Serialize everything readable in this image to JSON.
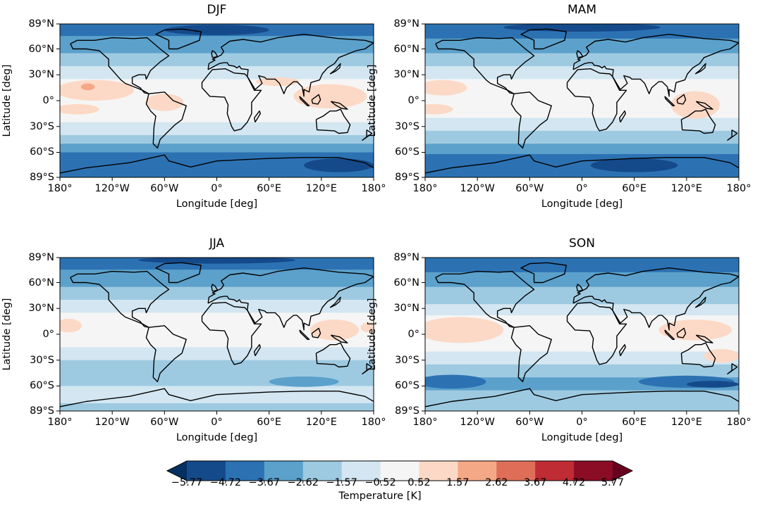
{
  "chart_data": {
    "type": "heatmap",
    "projection": "equirectangular",
    "panels": [
      {
        "title": "DJF",
        "bands": [
          [
            89,
            75,
            1
          ],
          [
            75,
            55,
            2
          ],
          [
            55,
            40,
            3
          ],
          [
            40,
            25,
            4
          ],
          [
            25,
            -25,
            5
          ],
          [
            -25,
            -40,
            4
          ],
          [
            -40,
            -50,
            3
          ],
          [
            -50,
            -60,
            2
          ],
          [
            -60,
            -89,
            1
          ]
        ],
        "blobs": [
          [
            -140,
            12,
            45,
            12,
            6
          ],
          [
            -148,
            16,
            8,
            4,
            7
          ],
          [
            130,
            5,
            42,
            14,
            6
          ],
          [
            -60,
            -2,
            22,
            10,
            6
          ],
          [
            70,
            22,
            25,
            5,
            6
          ],
          [
            -160,
            -10,
            25,
            6,
            6
          ],
          [
            0,
            82,
            60,
            6,
            0
          ],
          [
            140,
            -75,
            40,
            8,
            0
          ]
        ]
      },
      {
        "title": "MAM",
        "bands": [
          [
            89,
            72,
            1
          ],
          [
            72,
            55,
            2
          ],
          [
            55,
            40,
            3
          ],
          [
            40,
            25,
            4
          ],
          [
            25,
            -20,
            5
          ],
          [
            -20,
            -35,
            4
          ],
          [
            -35,
            -50,
            3
          ],
          [
            -50,
            -62,
            2
          ],
          [
            -62,
            -89,
            1
          ]
        ],
        "blobs": [
          [
            -160,
            15,
            28,
            9,
            6
          ],
          [
            -170,
            -10,
            22,
            6,
            6
          ],
          [
            130,
            -5,
            28,
            16,
            6
          ],
          [
            0,
            85,
            90,
            5,
            0
          ],
          [
            60,
            -75,
            50,
            8,
            0
          ]
        ]
      },
      {
        "title": "JJA",
        "bands": [
          [
            89,
            75,
            1
          ],
          [
            75,
            55,
            2
          ],
          [
            55,
            40,
            3
          ],
          [
            40,
            25,
            4
          ],
          [
            25,
            -15,
            5
          ],
          [
            -15,
            -30,
            4
          ],
          [
            -30,
            -60,
            3
          ],
          [
            -60,
            -80,
            4
          ],
          [
            -80,
            -89,
            3
          ]
        ],
        "blobs": [
          [
            -170,
            10,
            15,
            8,
            6
          ],
          [
            135,
            5,
            28,
            12,
            6
          ],
          [
            175,
            8,
            10,
            6,
            6
          ],
          [
            100,
            -55,
            40,
            6,
            2
          ],
          [
            0,
            86,
            90,
            4,
            0
          ]
        ]
      },
      {
        "title": "SON",
        "bands": [
          [
            89,
            72,
            1
          ],
          [
            72,
            55,
            2
          ],
          [
            55,
            35,
            3
          ],
          [
            35,
            22,
            4
          ],
          [
            22,
            -20,
            5
          ],
          [
            -20,
            -35,
            4
          ],
          [
            -35,
            -50,
            3
          ],
          [
            -50,
            -65,
            2
          ],
          [
            -65,
            -89,
            3
          ]
        ],
        "blobs": [
          [
            -140,
            5,
            50,
            15,
            6
          ],
          [
            130,
            5,
            42,
            12,
            6
          ],
          [
            160,
            -25,
            20,
            8,
            6
          ],
          [
            -150,
            -55,
            40,
            8,
            1
          ],
          [
            120,
            -55,
            55,
            7,
            1
          ],
          [
            150,
            -58,
            30,
            4,
            0
          ]
        ]
      }
    ],
    "xlabel": "Longitude [deg]",
    "ylabel": "Latitude [deg]",
    "xlim": [
      -180,
      180
    ],
    "ylim": [
      -89,
      89
    ],
    "xticks": [
      -180,
      -120,
      -60,
      0,
      60,
      120,
      180
    ],
    "xtick_labels": [
      "180°",
      "120°W",
      "60°W",
      "0°",
      "60°E",
      "120°E",
      "180°"
    ],
    "yticks": [
      89,
      60,
      30,
      0,
      -30,
      -60,
      -89
    ],
    "ytick_labels": [
      "89°N",
      "60°N",
      "30°N",
      "0°",
      "30°S",
      "60°S",
      "89°S"
    ],
    "colorbar": {
      "label": "Temperature [K]",
      "levels": [
        -5.77,
        -4.72,
        -3.67,
        -2.62,
        -1.57,
        -0.52,
        0.52,
        1.57,
        2.62,
        3.67,
        4.72,
        5.77
      ],
      "tick_labels": [
        "−5.77",
        "−4.72",
        "−3.67",
        "−2.62",
        "−1.57",
        "−0.52",
        "0.52",
        "1.57",
        "2.62",
        "3.67",
        "4.72",
        "5.77"
      ],
      "colors": [
        "#154a8a",
        "#2c72b3",
        "#5ba1cb",
        "#9ecae1",
        "#d3e6f1",
        "#f5f5f5",
        "#fcd9c6",
        "#f5a886",
        "#de6e58",
        "#bf2c34",
        "#8a0c25"
      ],
      "extend_low": "#053061",
      "extend_high": "#67001f",
      "colormap": "RdBu_r"
    }
  }
}
